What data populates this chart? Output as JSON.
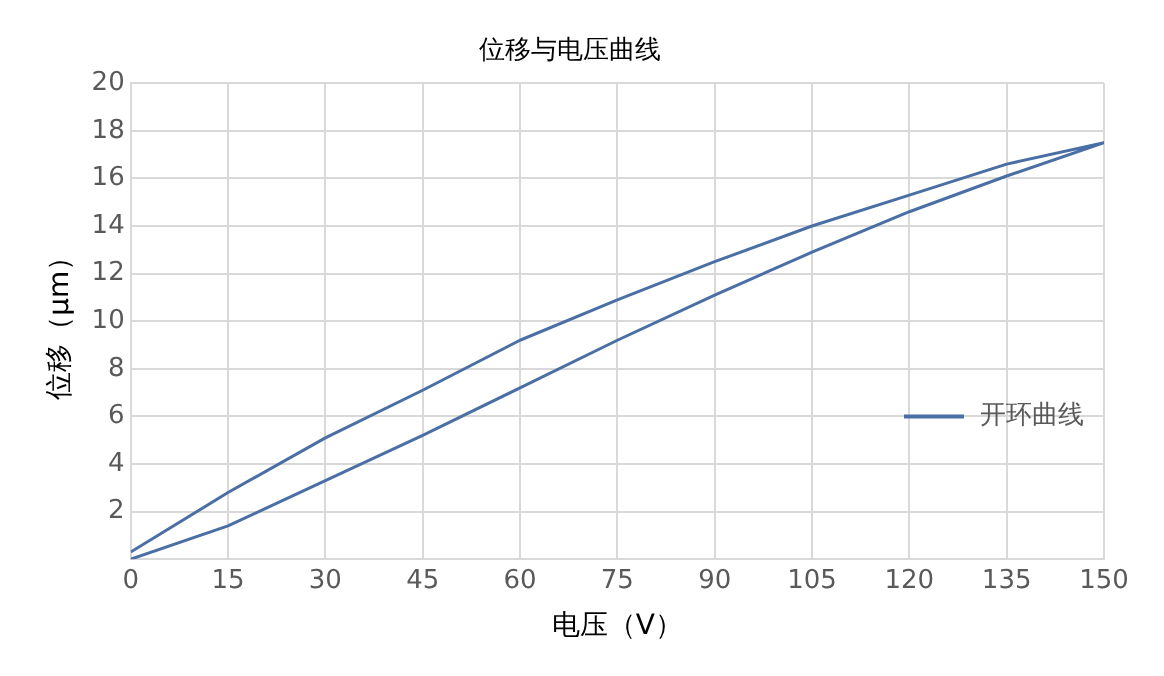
{
  "chart_data": {
    "type": "line",
    "title": "位移与电压曲线",
    "xlabel": "电压（V）",
    "ylabel": "位移（μm）",
    "series": [
      {
        "name": "开环曲线",
        "color": "#4a6fa5",
        "x": [
          0,
          15,
          30,
          45,
          60,
          75,
          90,
          105,
          120,
          135,
          150,
          135,
          120,
          105,
          90,
          75,
          60,
          45,
          30,
          15,
          0
        ],
        "values": [
          0,
          1.4,
          3.3,
          5.2,
          7.2,
          9.2,
          11.1,
          12.9,
          14.6,
          16.1,
          17.5,
          16.6,
          15.3,
          14.0,
          12.5,
          10.9,
          9.2,
          7.1,
          5.1,
          2.8,
          0.3
        ]
      }
    ],
    "xlim": [
      0,
      150
    ],
    "xticks": [
      0,
      15,
      30,
      45,
      60,
      75,
      90,
      105,
      120,
      135,
      150
    ],
    "ylim": [
      0,
      20
    ],
    "yticks": [
      {
        "value": 0,
        "label": null
      },
      2,
      4,
      6,
      8,
      10,
      12,
      14,
      16,
      18,
      20
    ],
    "grid": true,
    "legend": "right",
    "marker": "none",
    "line_style": "solid"
  }
}
